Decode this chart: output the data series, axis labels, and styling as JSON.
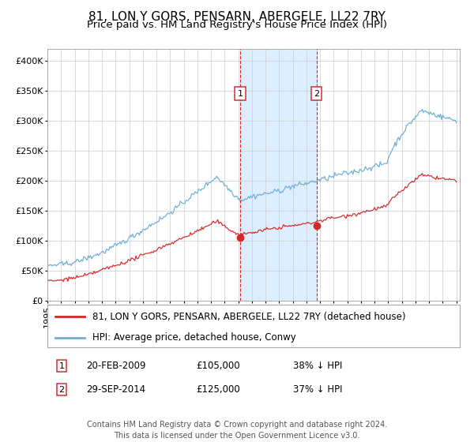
{
  "title": "81, LON Y GORS, PENSARN, ABERGELE, LL22 7RY",
  "subtitle": "Price paid vs. HM Land Registry's House Price Index (HPI)",
  "ylabel_ticks": [
    "£0",
    "£50K",
    "£100K",
    "£150K",
    "£200K",
    "£250K",
    "£300K",
    "£350K",
    "£400K"
  ],
  "ytick_values": [
    0,
    50000,
    100000,
    150000,
    200000,
    250000,
    300000,
    350000,
    400000
  ],
  "ylim": [
    0,
    420000
  ],
  "sale1_date": "20-FEB-2009",
  "sale1_price": 105000,
  "sale1_label": "1",
  "sale1_pct": "38% ↓ HPI",
  "sale2_date": "29-SEP-2014",
  "sale2_price": 125000,
  "sale2_label": "2",
  "sale2_pct": "37% ↓ HPI",
  "legend_line1": "81, LON Y GORS, PENSARN, ABERGELE, LL22 7RY (detached house)",
  "legend_line2": "HPI: Average price, detached house, Conwy",
  "footer": "Contains HM Land Registry data © Crown copyright and database right 2024.\nThis data is licensed under the Open Government Licence v3.0.",
  "hpi_color": "#6baed6",
  "price_color": "#d62728",
  "sale_marker_color": "#d62728",
  "vline_color": "#d62728",
  "shade_color": "#ddeeff",
  "grid_color": "#cccccc",
  "background_color": "#ffffff",
  "title_fontsize": 11,
  "subtitle_fontsize": 9.5,
  "tick_fontsize": 8,
  "legend_fontsize": 8.5,
  "footer_fontsize": 7
}
